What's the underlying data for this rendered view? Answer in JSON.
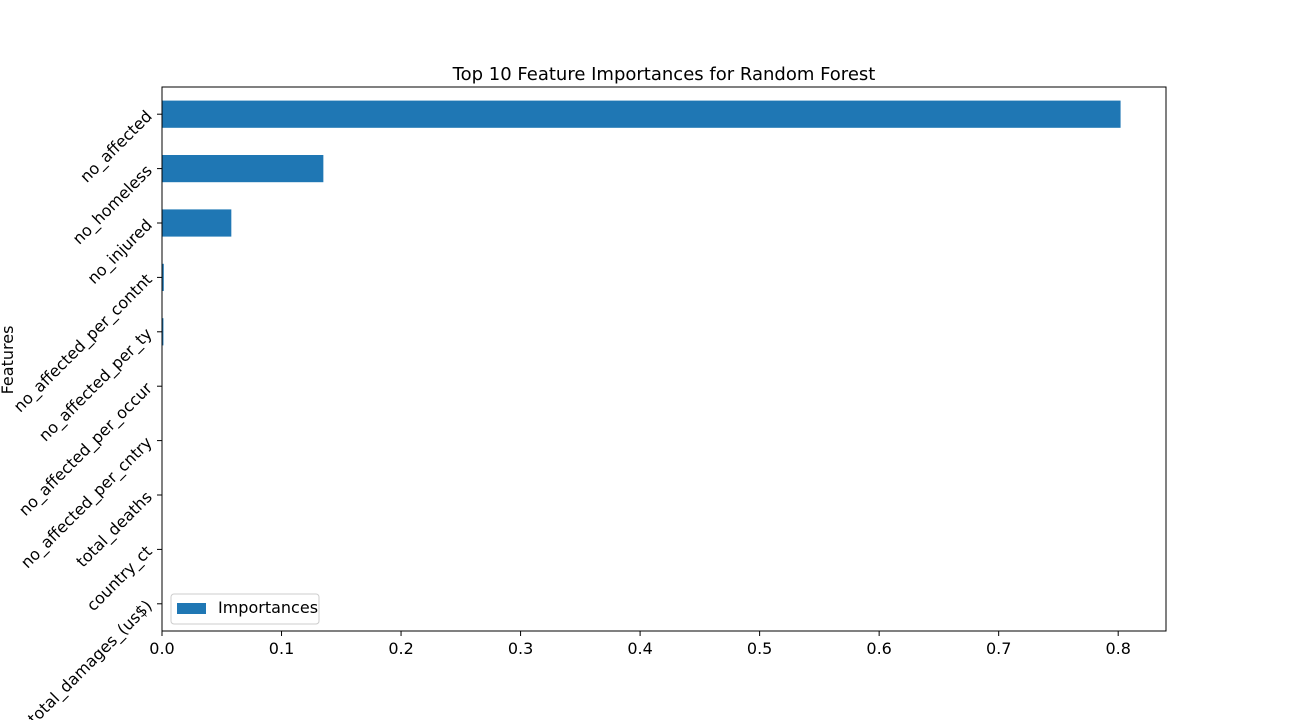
{
  "chart_data": {
    "type": "bar",
    "orientation": "horizontal",
    "title": "Top 10 Feature Importances for Random Forest",
    "xlabel": "",
    "ylabel": "Features",
    "categories": [
      "no_affected",
      "no_homeless",
      "no_injured",
      "no_affected_per_contnt",
      "no_affected_per_ty",
      "no_affected_per_occur",
      "no_affected_per_cntry",
      "total_deaths",
      "country_ct",
      "total_damages_(us$)"
    ],
    "series": [
      {
        "name": "Importances",
        "values": [
          0.802,
          0.135,
          0.058,
          0.0015,
          0.0012,
          0.0002,
          0.0001,
          0.0001,
          5e-05,
          3e-05
        ]
      }
    ],
    "xlim": [
      0,
      0.84
    ],
    "xticks": [
      0.0,
      0.1,
      0.2,
      0.3,
      0.4,
      0.5,
      0.6,
      0.7,
      0.8
    ],
    "xtick_labels": [
      "0.0",
      "0.1",
      "0.2",
      "0.3",
      "0.4",
      "0.5",
      "0.6",
      "0.7",
      "0.8"
    ],
    "grid": false,
    "legend": {
      "position": "lower-left",
      "entries": [
        "Importances"
      ]
    },
    "colors": {
      "bar": "#1f77b4",
      "axis": "#000000",
      "background": "#ffffff"
    }
  }
}
